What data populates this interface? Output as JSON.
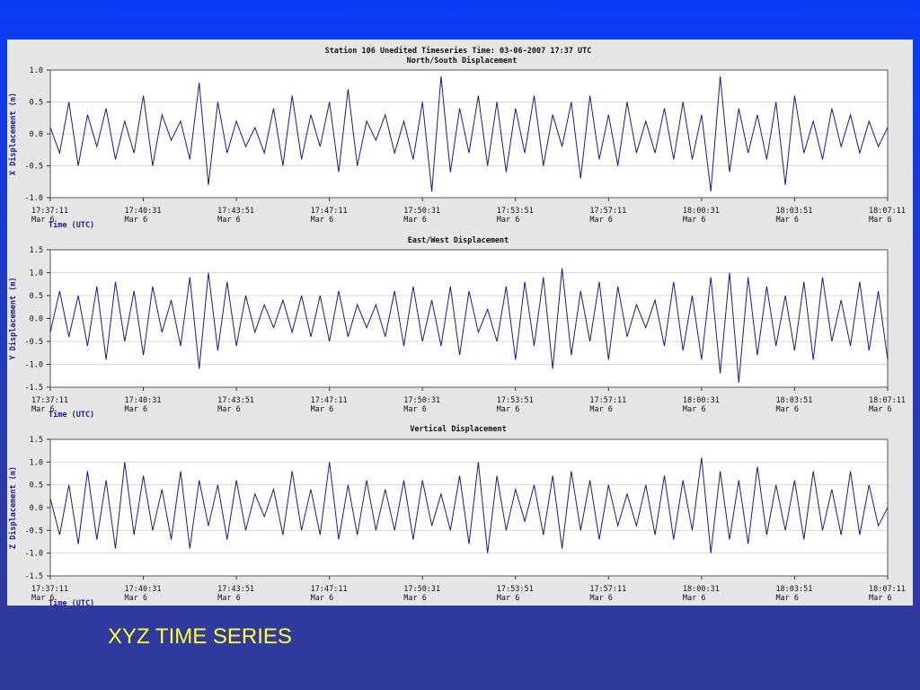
{
  "caption": "XYZ TIME SERIES",
  "chart_data": [
    {
      "type": "line",
      "title": "Station 106  Unedited Timeseries  Time: 03-06-2007 17:37 UTC",
      "subtitle": "North/South Displacement",
      "ylabel": "X Displacement (m)",
      "xlabel": "Time (UTC)",
      "color": "#1a1a8c",
      "grid": true,
      "xlim": [
        "17:37:11",
        "18:07:11"
      ],
      "xticks": [
        "17:37:11",
        "17:40:31",
        "17:43:51",
        "17:47:11",
        "17:50:31",
        "17:53:51",
        "17:57:11",
        "18:00:31",
        "18:03:51",
        "18:07:11"
      ],
      "xtick_dates": [
        "Mar 6",
        "Mar 6",
        "Mar 6",
        "Mar 6",
        "Mar 6",
        "Mar 6",
        "Mar 6",
        "Mar 6",
        "Mar 6",
        "Mar 6"
      ],
      "ylim": [
        -1,
        1
      ],
      "yticks": [
        {
          "value": -1,
          "label": "-1.0"
        },
        -0.5,
        {
          "value": 0,
          "label": "0.0"
        },
        0.5,
        {
          "value": 1,
          "label": "1.0"
        }
      ],
      "x": [
        "17:37:11",
        "17:37:31",
        "17:37:51",
        "17:38:11",
        "17:38:31",
        "17:38:51",
        "17:39:11",
        "17:39:31",
        "17:39:51",
        "17:40:11",
        "17:40:31",
        "17:40:51",
        "17:41:11",
        "17:41:31",
        "17:41:51",
        "17:42:11",
        "17:42:31",
        "17:42:51",
        "17:43:11",
        "17:43:31",
        "17:43:51",
        "17:44:11",
        "17:44:31",
        "17:44:51",
        "17:45:11",
        "17:45:31",
        "17:45:51",
        "17:46:11",
        "17:46:31",
        "17:46:51",
        "17:47:11",
        "17:47:31",
        "17:47:51",
        "17:48:11",
        "17:48:31",
        "17:48:51",
        "17:49:11",
        "17:49:31",
        "17:49:51",
        "17:50:11",
        "17:50:31",
        "17:50:51",
        "17:51:11",
        "17:51:31",
        "17:51:51",
        "17:52:11",
        "17:52:31",
        "17:52:51",
        "17:53:11",
        "17:53:31",
        "17:53:51",
        "17:54:11",
        "17:54:31",
        "17:54:51",
        "17:55:11",
        "17:55:31",
        "17:55:51",
        "17:56:11",
        "17:56:31",
        "17:56:51",
        "17:57:11",
        "17:57:31",
        "17:57:51",
        "17:58:11",
        "17:58:31",
        "17:58:51",
        "17:59:11",
        "17:59:31",
        "17:59:51",
        "18:00:11",
        "18:00:31",
        "18:00:51",
        "18:01:11",
        "18:01:31",
        "18:01:51",
        "18:02:11",
        "18:02:31",
        "18:02:51",
        "18:03:11",
        "18:03:31",
        "18:03:51",
        "18:04:11",
        "18:04:31",
        "18:04:51",
        "18:05:11",
        "18:05:31",
        "18:05:51",
        "18:06:11",
        "18:06:31",
        "18:06:51",
        "18:07:11"
      ],
      "values": [
        0.1,
        -0.3,
        0.5,
        -0.5,
        0.3,
        -0.2,
        0.4,
        -0.4,
        0.2,
        -0.3,
        0.6,
        -0.5,
        0.3,
        -0.1,
        0.2,
        -0.4,
        0.8,
        -0.8,
        0.5,
        -0.3,
        0.2,
        -0.2,
        0.1,
        -0.3,
        0.4,
        -0.5,
        0.6,
        -0.4,
        0.3,
        -0.2,
        0.5,
        -0.6,
        0.7,
        -0.5,
        0.2,
        -0.1,
        0.3,
        -0.3,
        0.2,
        -0.4,
        0.5,
        -0.9,
        0.9,
        -0.6,
        0.4,
        -0.3,
        0.6,
        -0.5,
        0.5,
        -0.6,
        0.4,
        -0.3,
        0.6,
        -0.5,
        0.3,
        -0.2,
        0.5,
        -0.7,
        0.6,
        -0.4,
        0.3,
        -0.5,
        0.5,
        -0.3,
        0.2,
        -0.3,
        0.4,
        -0.4,
        0.5,
        -0.4,
        0.3,
        -0.9,
        0.9,
        -0.6,
        0.4,
        -0.3,
        0.3,
        -0.4,
        0.5,
        -0.8,
        0.6,
        -0.3,
        0.2,
        -0.4,
        0.4,
        -0.2,
        0.3,
        -0.3,
        0.2,
        -0.2,
        0.1
      ]
    },
    {
      "type": "line",
      "title": "East/West Displacement",
      "ylabel": "Y Displacement (m)",
      "xlabel": "Time (UTC)",
      "color": "#1a1a8c",
      "grid": true,
      "xlim": [
        "17:37:11",
        "18:07:11"
      ],
      "xticks": [
        "17:37:11",
        "17:40:31",
        "17:43:51",
        "17:47:11",
        "17:50:31",
        "17:53:51",
        "17:57:11",
        "18:00:31",
        "18:03:51",
        "18:07:11"
      ],
      "xtick_dates": [
        "Mar 6",
        "Mar 6",
        "Mar 6",
        "Mar 6",
        "Mar 6",
        "Mar 6",
        "Mar 6",
        "Mar 6",
        "Mar 6",
        "Mar 6"
      ],
      "ylim": [
        -1.5,
        1.5
      ],
      "yticks": [
        -1.5,
        {
          "value": -1,
          "label": "-1.0"
        },
        -0.5,
        {
          "value": 0,
          "label": "0.0"
        },
        0.5,
        {
          "value": 1,
          "label": "1.0"
        },
        1.5
      ],
      "x": [
        "17:37:11",
        "17:37:31",
        "17:37:51",
        "17:38:11",
        "17:38:31",
        "17:38:51",
        "17:39:11",
        "17:39:31",
        "17:39:51",
        "17:40:11",
        "17:40:31",
        "17:40:51",
        "17:41:11",
        "17:41:31",
        "17:41:51",
        "17:42:11",
        "17:42:31",
        "17:42:51",
        "17:43:11",
        "17:43:31",
        "17:43:51",
        "17:44:11",
        "17:44:31",
        "17:44:51",
        "17:45:11",
        "17:45:31",
        "17:45:51",
        "17:46:11",
        "17:46:31",
        "17:46:51",
        "17:47:11",
        "17:47:31",
        "17:47:51",
        "17:48:11",
        "17:48:31",
        "17:48:51",
        "17:49:11",
        "17:49:31",
        "17:49:51",
        "17:50:11",
        "17:50:31",
        "17:50:51",
        "17:51:11",
        "17:51:31",
        "17:51:51",
        "17:52:11",
        "17:52:31",
        "17:52:51",
        "17:53:11",
        "17:53:31",
        "17:53:51",
        "17:54:11",
        "17:54:31",
        "17:54:51",
        "17:55:11",
        "17:55:31",
        "17:55:51",
        "17:56:11",
        "17:56:31",
        "17:56:51",
        "17:57:11",
        "17:57:31",
        "17:57:51",
        "17:58:11",
        "17:58:31",
        "17:58:51",
        "17:59:11",
        "17:59:31",
        "17:59:51",
        "18:00:11",
        "18:00:31",
        "18:00:51",
        "18:01:11",
        "18:01:31",
        "18:01:51",
        "18:02:11",
        "18:02:31",
        "18:02:51",
        "18:03:11",
        "18:03:31",
        "18:03:51",
        "18:04:11",
        "18:04:31",
        "18:04:51",
        "18:05:11",
        "18:05:31",
        "18:05:51",
        "18:06:11",
        "18:06:31",
        "18:06:51",
        "18:07:11"
      ],
      "values": [
        -0.3,
        0.6,
        -0.4,
        0.5,
        -0.6,
        0.7,
        -0.9,
        0.8,
        -0.5,
        0.6,
        -0.8,
        0.7,
        -0.3,
        0.4,
        -0.6,
        0.9,
        -1.1,
        1.0,
        -0.7,
        0.8,
        -0.6,
        0.5,
        -0.3,
        0.3,
        -0.2,
        0.4,
        -0.3,
        0.5,
        -0.4,
        0.5,
        -0.5,
        0.6,
        -0.4,
        0.3,
        -0.2,
        0.3,
        -0.4,
        0.6,
        -0.6,
        0.7,
        -0.5,
        0.4,
        -0.6,
        0.7,
        -0.8,
        0.6,
        -0.3,
        0.2,
        -0.5,
        0.7,
        -0.9,
        0.8,
        -0.6,
        0.9,
        -1.1,
        1.1,
        -0.8,
        0.6,
        -0.5,
        0.8,
        -0.9,
        0.7,
        -0.4,
        0.3,
        -0.2,
        0.4,
        -0.6,
        0.8,
        -0.7,
        0.5,
        -0.9,
        0.9,
        -1.2,
        1.0,
        -1.4,
        0.9,
        -0.8,
        0.7,
        -0.6,
        0.5,
        -0.7,
        0.8,
        -0.9,
        0.9,
        -0.5,
        0.4,
        -0.6,
        0.8,
        -0.7,
        0.6,
        -0.9
      ]
    },
    {
      "type": "line",
      "title": "Vertical Displacement",
      "ylabel": "Z Displacement (m)",
      "xlabel": "Time (UTC)",
      "color": "#1a1a8c",
      "grid": true,
      "xlim": [
        "17:37:11",
        "18:07:11"
      ],
      "xticks": [
        "17:37:11",
        "17:40:31",
        "17:43:51",
        "17:47:11",
        "17:50:31",
        "17:53:51",
        "17:57:11",
        "18:00:31",
        "18:03:51",
        "18:07:11"
      ],
      "xtick_dates": [
        "Mar 6",
        "Mar 6",
        "Mar 6",
        "Mar 6",
        "Mar 6",
        "Mar 6",
        "Mar 6",
        "Mar 6",
        "Mar 6",
        "Mar 6"
      ],
      "ylim": [
        -1.5,
        1.5
      ],
      "yticks": [
        -1.5,
        {
          "value": -1,
          "label": "-1.0"
        },
        -0.5,
        {
          "value": 0,
          "label": "0.0"
        },
        0.5,
        {
          "value": 1,
          "label": "1.0"
        },
        1.5
      ],
      "x": [
        "17:37:11",
        "17:37:31",
        "17:37:51",
        "17:38:11",
        "17:38:31",
        "17:38:51",
        "17:39:11",
        "17:39:31",
        "17:39:51",
        "17:40:11",
        "17:40:31",
        "17:40:51",
        "17:41:11",
        "17:41:31",
        "17:41:51",
        "17:42:11",
        "17:42:31",
        "17:42:51",
        "17:43:11",
        "17:43:31",
        "17:43:51",
        "17:44:11",
        "17:44:31",
        "17:44:51",
        "17:45:11",
        "17:45:31",
        "17:45:51",
        "17:46:11",
        "17:46:31",
        "17:46:51",
        "17:47:11",
        "17:47:31",
        "17:47:51",
        "17:48:11",
        "17:48:31",
        "17:48:51",
        "17:49:11",
        "17:49:31",
        "17:49:51",
        "17:50:11",
        "17:50:31",
        "17:50:51",
        "17:51:11",
        "17:51:31",
        "17:51:51",
        "17:52:11",
        "17:52:31",
        "17:52:51",
        "17:53:11",
        "17:53:31",
        "17:53:51",
        "17:54:11",
        "17:54:31",
        "17:54:51",
        "17:55:11",
        "17:55:31",
        "17:55:51",
        "17:56:11",
        "17:56:31",
        "17:56:51",
        "17:57:11",
        "17:57:31",
        "17:57:51",
        "17:58:11",
        "17:58:31",
        "17:58:51",
        "17:59:11",
        "17:59:31",
        "17:59:51",
        "18:00:11",
        "18:00:31",
        "18:00:51",
        "18:01:11",
        "18:01:31",
        "18:01:51",
        "18:02:11",
        "18:02:31",
        "18:02:51",
        "18:03:11",
        "18:03:31",
        "18:03:51",
        "18:04:11",
        "18:04:31",
        "18:04:51",
        "18:05:11",
        "18:05:31",
        "18:05:51",
        "18:06:11",
        "18:06:31",
        "18:06:51",
        "18:07:11"
      ],
      "values": [
        0.2,
        -0.6,
        0.5,
        -0.8,
        0.8,
        -0.7,
        0.6,
        -0.9,
        1.0,
        -0.6,
        0.7,
        -0.5,
        0.4,
        -0.7,
        0.8,
        -0.9,
        0.6,
        -0.4,
        0.5,
        -0.7,
        0.6,
        -0.5,
        0.3,
        -0.2,
        0.4,
        -0.6,
        0.8,
        -0.5,
        0.4,
        -0.6,
        1.0,
        -0.7,
        0.5,
        -0.6,
        0.6,
        -0.5,
        0.4,
        -0.5,
        0.6,
        -0.7,
        0.6,
        -0.4,
        0.3,
        -0.5,
        0.7,
        -0.8,
        1.0,
        -1.0,
        0.7,
        -0.5,
        0.4,
        -0.3,
        0.5,
        -0.6,
        0.7,
        -0.9,
        0.8,
        -0.5,
        0.6,
        -0.7,
        0.5,
        -0.4,
        0.3,
        -0.4,
        0.5,
        -0.6,
        0.7,
        -0.7,
        0.6,
        -0.5,
        1.1,
        -1.0,
        0.8,
        -0.7,
        0.6,
        -0.8,
        0.9,
        -0.6,
        0.5,
        -0.5,
        0.6,
        -0.7,
        0.8,
        -0.5,
        0.4,
        -0.6,
        0.8,
        -0.6,
        0.5,
        -0.4,
        0.0
      ]
    }
  ]
}
